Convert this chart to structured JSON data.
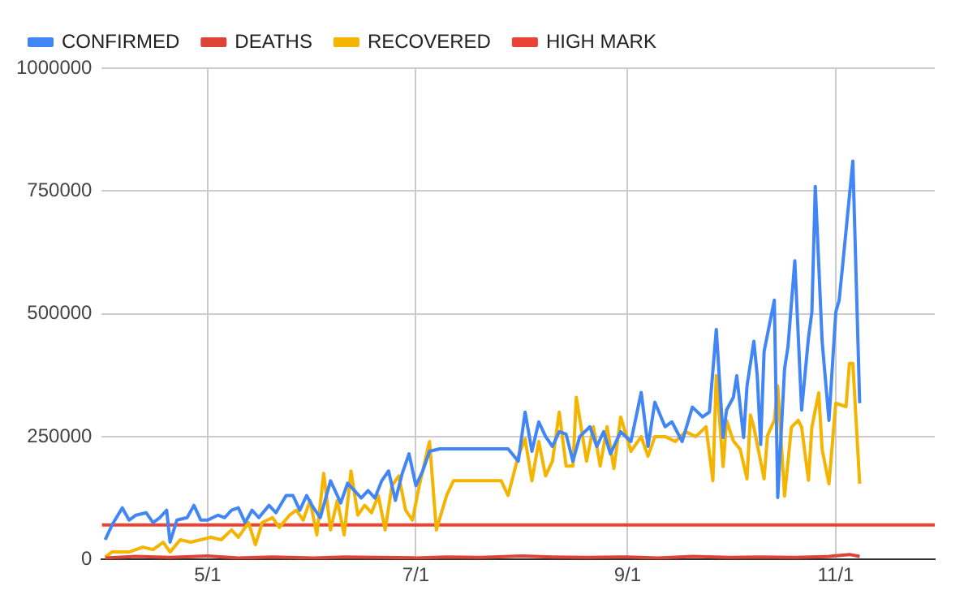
{
  "chart_data": {
    "type": "line",
    "legend": "top",
    "grid": true,
    "marker": "none",
    "line_style": "solid",
    "xlim": [
      "--03-31",
      "--11-30"
    ],
    "xticks": [
      {
        "value": "--05-01",
        "label": "5/1"
      },
      {
        "value": "--07-01",
        "label": "7/1"
      },
      {
        "value": "--09-01",
        "label": "9/1"
      },
      {
        "value": "--11-01",
        "label": "11/1"
      }
    ],
    "ylim": [
      0,
      1000000
    ],
    "yticks": [
      0,
      250000,
      500000,
      750000,
      1000000
    ],
    "series": [
      {
        "name": "CONFIRMED",
        "color": "#4285f4",
        "x": [
          "--04-01",
          "--04-03",
          "--04-06",
          "--04-08",
          "--04-10",
          "--04-13",
          "--04-15",
          "--04-17",
          "--04-19",
          "--04-20",
          "--04-22",
          "--04-25",
          "--04-27",
          "--04-29",
          "--05-01",
          "--05-04",
          "--05-06",
          "--05-08",
          "--05-10",
          "--05-12",
          "--05-14",
          "--05-16",
          "--05-19",
          "--05-21",
          "--05-24",
          "--05-26",
          "--05-28",
          "--05-30",
          "--06-01",
          "--06-03",
          "--06-06",
          "--06-09",
          "--06-11",
          "--06-13",
          "--06-15",
          "--06-17",
          "--06-19",
          "--06-21",
          "--06-23",
          "--06-25",
          "--06-27",
          "--06-29",
          "--07-01",
          "--07-03",
          "--07-05",
          "--07-08",
          "--07-28",
          "--07-31",
          "--08-02",
          "--08-04",
          "--08-06",
          "--08-08",
          "--08-10",
          "--08-12",
          "--08-14",
          "--08-16",
          "--08-18",
          "--08-21",
          "--08-23",
          "--08-25",
          "--08-27",
          "--08-30",
          "--09-02",
          "--09-05",
          "--09-07",
          "--09-09",
          "--09-12",
          "--09-14",
          "--09-17",
          "--09-20",
          "--09-23",
          "--09-25",
          "--09-27",
          "--09-29",
          "--09-30",
          "--10-02",
          "--10-03",
          "--10-05",
          "--10-06",
          "--10-08",
          "--10-09",
          "--10-10",
          "--10-11",
          "--10-14",
          "--10-15",
          "--10-17",
          "--10-18",
          "--10-20",
          "--10-22",
          "--10-24",
          "--10-25",
          "--10-26",
          "--10-28",
          "--10-30",
          "--11-01",
          "--11-02",
          "--11-03",
          "--11-06",
          "--11-08"
        ],
        "values": [
          40000,
          70000,
          105000,
          80000,
          90000,
          95000,
          75000,
          85000,
          100000,
          35000,
          80000,
          85000,
          110000,
          80000,
          80000,
          90000,
          85000,
          100000,
          105000,
          75000,
          100000,
          85000,
          110000,
          95000,
          130000,
          130000,
          100000,
          130000,
          105000,
          85000,
          160000,
          115000,
          155000,
          140000,
          125000,
          140000,
          125000,
          160000,
          180000,
          120000,
          175000,
          215000,
          150000,
          180000,
          220000,
          225000,
          225000,
          200000,
          300000,
          220000,
          280000,
          250000,
          230000,
          260000,
          255000,
          200000,
          250000,
          270000,
          230000,
          260000,
          215000,
          260000,
          240000,
          340000,
          230000,
          320000,
          270000,
          280000,
          240000,
          310000,
          290000,
          300000,
          468000,
          248000,
          304000,
          330000,
          374000,
          248000,
          353000,
          444000,
          374000,
          234000,
          423000,
          528000,
          126000,
          388000,
          433000,
          608000,
          304000,
          451000,
          503000,
          759000,
          444000,
          283000,
          503000,
          528000,
          598000,
          811000,
          318000
        ]
      },
      {
        "name": "DEATHS",
        "color": "#db4437",
        "x": [
          "--04-01",
          "--04-10",
          "--04-20",
          "--05-01",
          "--05-10",
          "--05-20",
          "--06-01",
          "--06-10",
          "--06-20",
          "--07-01",
          "--07-10",
          "--07-20",
          "--08-01",
          "--08-10",
          "--08-20",
          "--09-01",
          "--09-10",
          "--09-20",
          "--10-01",
          "--10-10",
          "--10-20",
          "--10-30",
          "--11-05",
          "--11-08"
        ],
        "values": [
          3000,
          6000,
          4000,
          7000,
          3000,
          5000,
          3000,
          5000,
          4000,
          3000,
          5000,
          4000,
          7000,
          5000,
          4000,
          5000,
          3000,
          6000,
          4000,
          5000,
          4000,
          6000,
          10000,
          6000
        ]
      },
      {
        "name": "RECOVERED",
        "color": "#f4b400",
        "x": [
          "--04-01",
          "--04-03",
          "--04-08",
          "--04-12",
          "--04-15",
          "--04-18",
          "--04-20",
          "--04-23",
          "--04-26",
          "--04-29",
          "--05-02",
          "--05-05",
          "--05-08",
          "--05-10",
          "--05-13",
          "--05-15",
          "--05-17",
          "--05-20",
          "--05-22",
          "--05-25",
          "--05-27",
          "--05-29",
          "--05-31",
          "--06-02",
          "--06-04",
          "--06-06",
          "--06-08",
          "--06-10",
          "--06-12",
          "--06-14",
          "--06-16",
          "--06-18",
          "--06-20",
          "--06-22",
          "--06-24",
          "--06-26",
          "--06-28",
          "--06-30",
          "--07-02",
          "--07-05",
          "--07-07",
          "--07-10",
          "--07-12",
          "--07-26",
          "--07-28",
          "--07-31",
          "--08-02",
          "--08-04",
          "--08-06",
          "--08-08",
          "--08-10",
          "--08-12",
          "--08-14",
          "--08-16",
          "--08-17",
          "--08-20",
          "--08-22",
          "--08-24",
          "--08-26",
          "--08-28",
          "--08-30",
          "--09-02",
          "--09-05",
          "--09-07",
          "--09-09",
          "--09-12",
          "--09-15",
          "--09-18",
          "--09-21",
          "--09-24",
          "--09-26",
          "--09-27",
          "--09-29",
          "--09-30",
          "--10-02",
          "--10-04",
          "--10-06",
          "--10-07",
          "--10-08",
          "--10-09",
          "--10-11",
          "--10-12",
          "--10-14",
          "--10-15",
          "--10-17",
          "--10-19",
          "--10-21",
          "--10-22",
          "--10-24",
          "--10-25",
          "--10-27",
          "--10-28",
          "--10-30",
          "--11-01",
          "--11-04",
          "--11-05",
          "--11-06",
          "--11-08"
        ],
        "values": [
          5000,
          15000,
          15000,
          25000,
          20000,
          35000,
          15000,
          40000,
          35000,
          40000,
          45000,
          40000,
          60000,
          45000,
          75000,
          30000,
          75000,
          85000,
          65000,
          90000,
          100000,
          80000,
          120000,
          50000,
          175000,
          60000,
          120000,
          50000,
          180000,
          90000,
          110000,
          95000,
          130000,
          60000,
          150000,
          170000,
          100000,
          80000,
          150000,
          240000,
          60000,
          130000,
          160000,
          160000,
          130000,
          210000,
          245000,
          160000,
          240000,
          170000,
          200000,
          300000,
          190000,
          190000,
          330000,
          200000,
          270000,
          190000,
          270000,
          185000,
          290000,
          220000,
          250000,
          210000,
          250000,
          250000,
          240000,
          260000,
          250000,
          270000,
          160000,
          374000,
          189000,
          283000,
          241000,
          224000,
          164000,
          294000,
          269000,
          234000,
          164000,
          252000,
          283000,
          353000,
          129000,
          269000,
          283000,
          269000,
          161000,
          269000,
          339000,
          224000,
          154000,
          318000,
          311000,
          399000,
          399000,
          154000
        ]
      },
      {
        "name": "HIGH MARK",
        "color": "#ea4335",
        "x": [
          "--03-31",
          "--11-30"
        ],
        "values": [
          70000,
          70000
        ]
      }
    ]
  }
}
